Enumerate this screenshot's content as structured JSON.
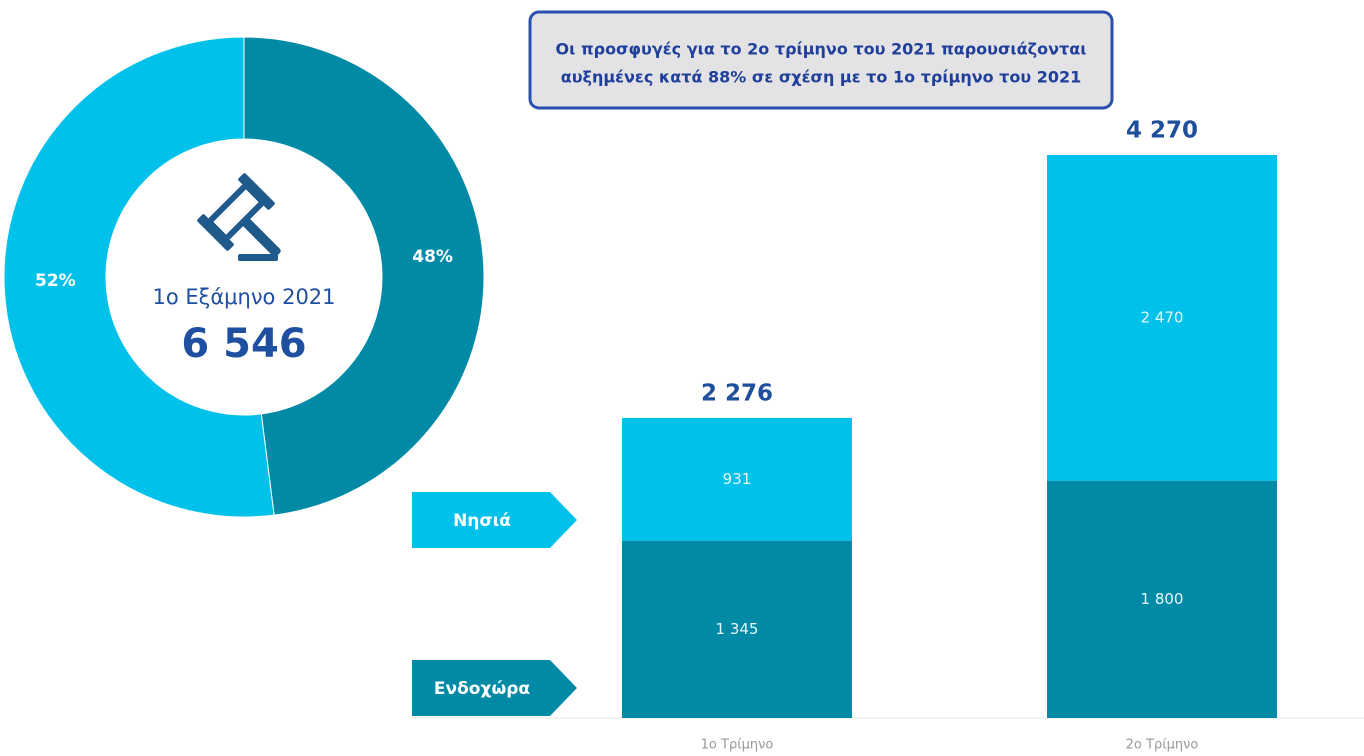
{
  "chart_data": [
    {
      "type": "pie",
      "values": [
        48,
        52
      ],
      "value_labels": [
        "48%",
        "52%"
      ],
      "colors": [
        "#008aa6",
        "#00c1ea"
      ],
      "center_label": "1ο  Εξάμηνο 2021",
      "center_value": "6 546"
    },
    {
      "type": "bar",
      "stacked": true,
      "annotation": [
        "Οι προσφυγές για το 2ο τρίμηνο του 2021 παρουσιάζονται",
        "αυξημένες κατά 88% σε σχέση με το 1ο τρίμηνο του 2021"
      ],
      "categories": [
        "1ο Τρίμηνο",
        "2ο Τρίμηνο"
      ],
      "series": [
        {
          "name": "Ενδοχώρα",
          "color": "#008aa6",
          "values": [
            1345,
            1800
          ],
          "value_labels": [
            "1 345",
            "1 800"
          ]
        },
        {
          "name": "Νησιά",
          "color": "#00c1ea",
          "values": [
            931,
            2470
          ],
          "value_labels": [
            "931",
            "2 470"
          ]
        }
      ],
      "totals": [
        2276,
        4270
      ],
      "total_labels": [
        "2 276",
        "4 270"
      ],
      "ylim": [
        0,
        4270
      ]
    }
  ]
}
